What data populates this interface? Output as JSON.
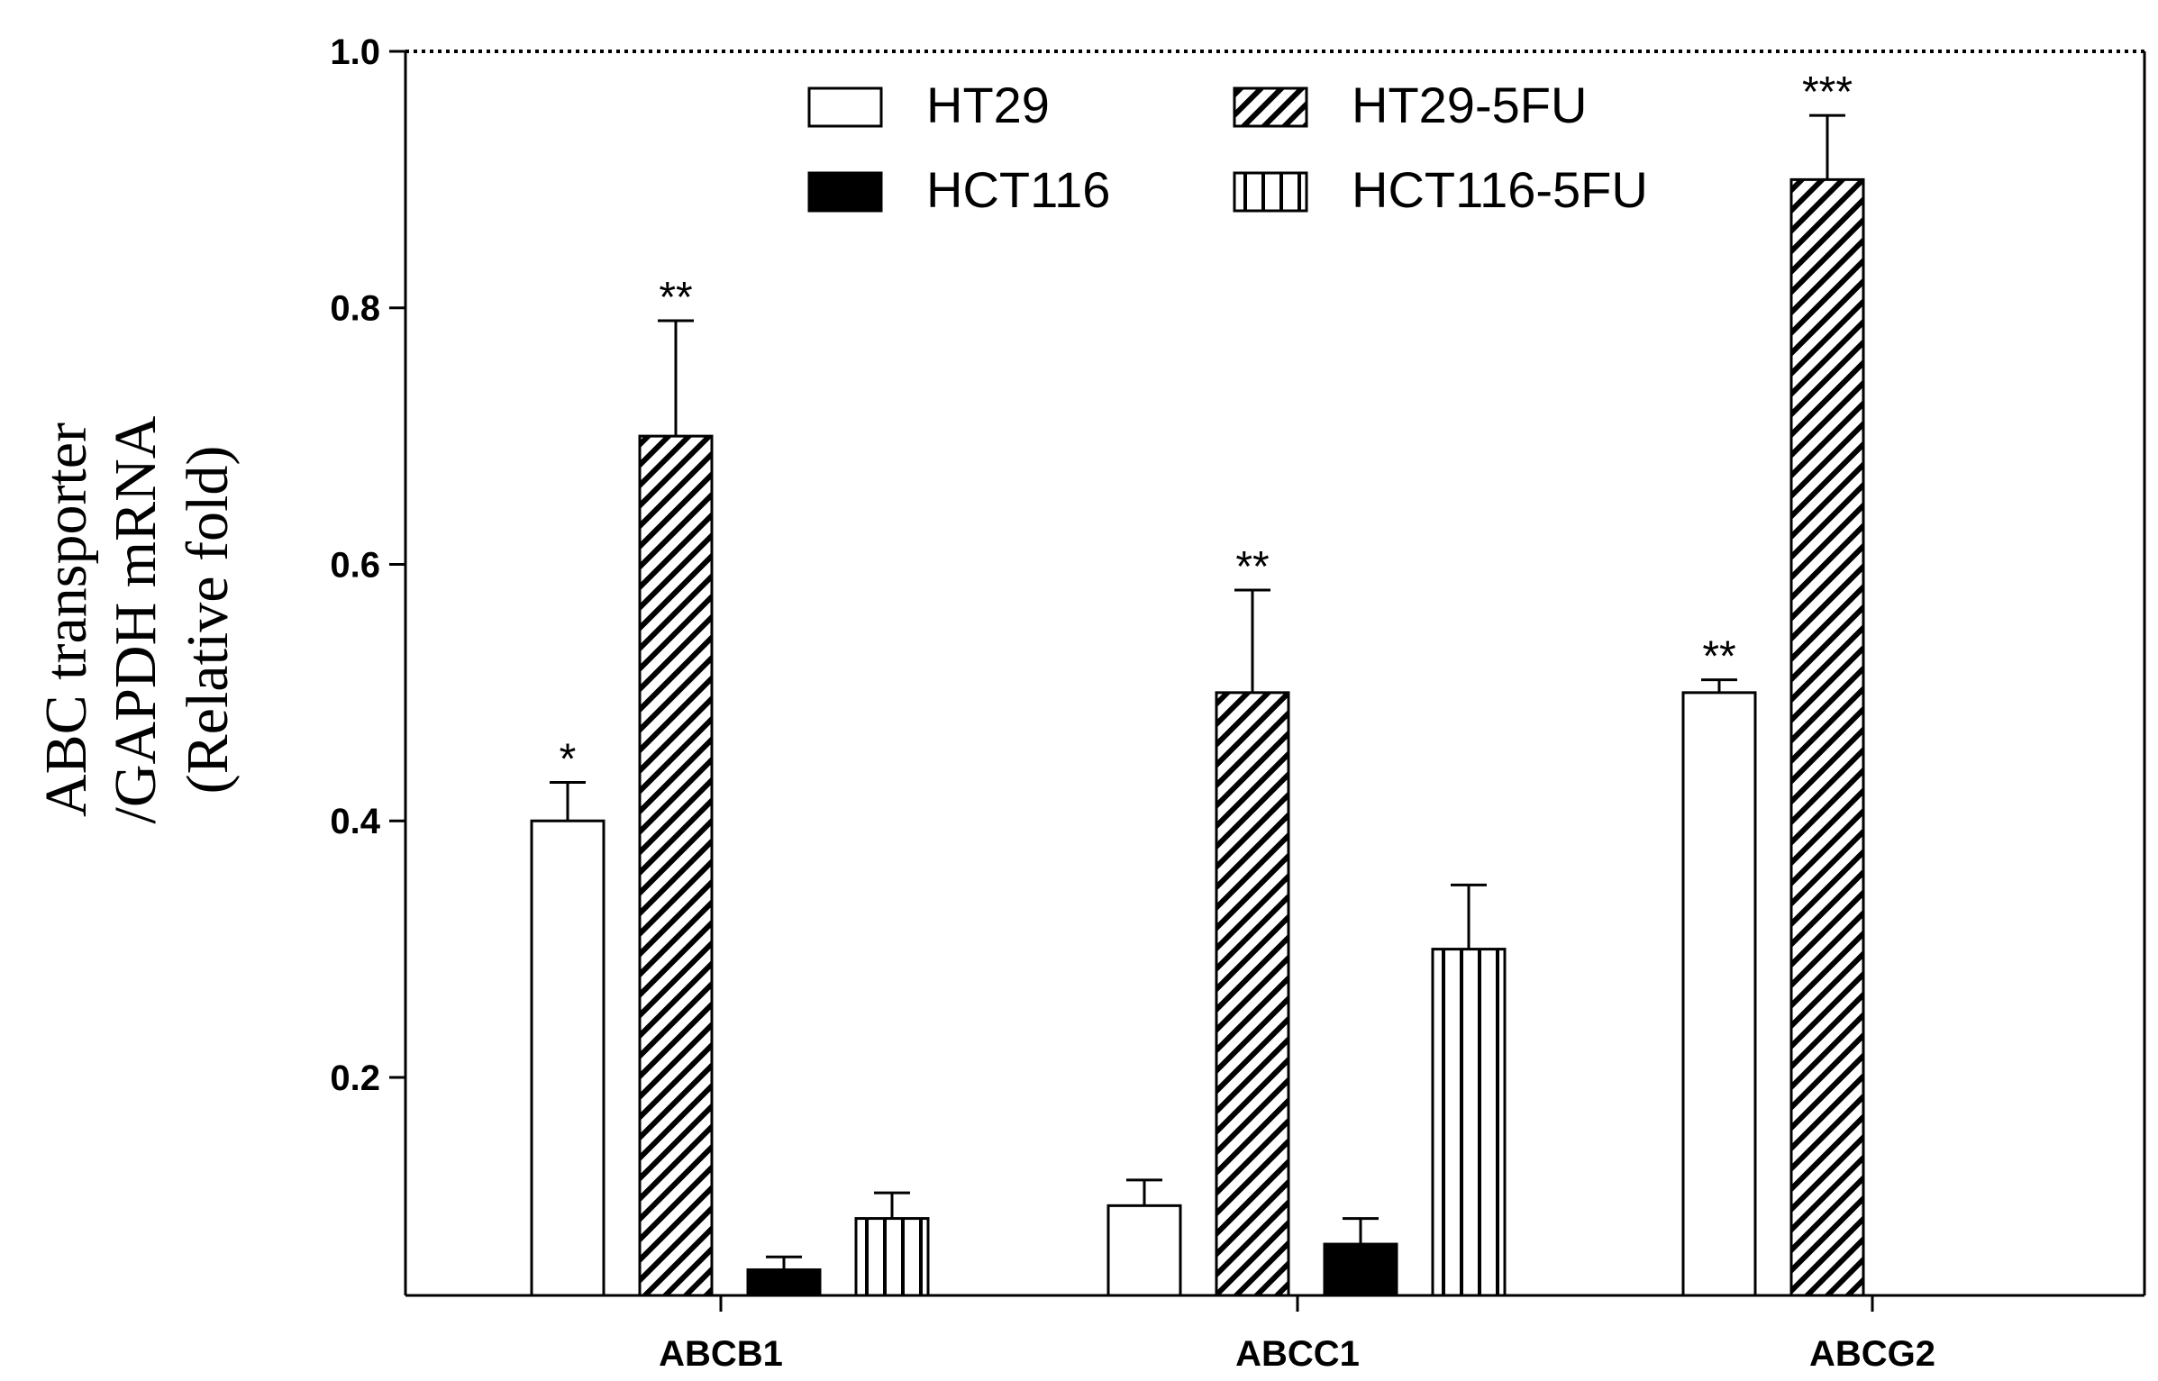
{
  "chart_data": {
    "type": "bar",
    "title": "",
    "ylabel_lines": [
      "ABC transporter",
      "/GAPDH mRNA",
      "(Relative fold)"
    ],
    "xlabel": "",
    "categories": [
      "ABCB1",
      "ABCC1",
      "ABCG2"
    ],
    "ylim": [
      0.03,
      1.0
    ],
    "yticks": [
      0.2,
      0.4,
      0.6,
      0.8,
      1.0
    ],
    "ytick_labels": [
      "0.2",
      "0.4",
      "0.6",
      "0.8",
      "1.0"
    ],
    "legend_position": "top-center",
    "grid": false,
    "series": [
      {
        "name": "HT29",
        "pattern": "white",
        "values": [
          0.4,
          0.1,
          0.5
        ],
        "errors": [
          0.03,
          0.02,
          0.01
        ],
        "sig": [
          "*",
          "",
          "**"
        ]
      },
      {
        "name": "HT29-5FU",
        "pattern": "diagonal",
        "values": [
          0.7,
          0.5,
          0.9
        ],
        "errors": [
          0.09,
          0.08,
          0.05
        ],
        "sig": [
          "**",
          "**",
          "***"
        ]
      },
      {
        "name": "HCT116",
        "pattern": "black",
        "values": [
          0.05,
          0.07,
          null
        ],
        "errors": [
          0.01,
          0.02,
          null
        ],
        "sig": [
          "",
          "",
          ""
        ]
      },
      {
        "name": "HCT116-5FU",
        "pattern": "vertical",
        "values": [
          0.09,
          0.3,
          null
        ],
        "errors": [
          0.02,
          0.05,
          null
        ],
        "sig": [
          "",
          "",
          ""
        ]
      }
    ]
  }
}
